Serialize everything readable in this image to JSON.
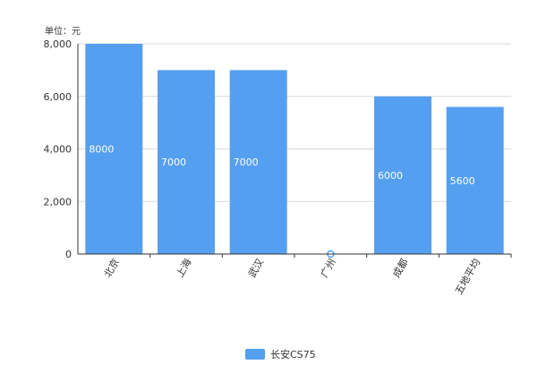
{
  "chart_data": {
    "type": "bar",
    "unit_label": "单位：元",
    "categories": [
      "北京",
      "上海",
      "武汉",
      "广州",
      "成都",
      "五地平均"
    ],
    "series": [
      {
        "name": "长安CS75",
        "values": [
          8000,
          7000,
          7000,
          0,
          6000,
          5600
        ]
      }
    ],
    "data_labels": [
      "8000",
      "7000",
      "7000",
      "",
      "6000",
      "5600"
    ],
    "ylim": [
      0,
      8000
    ],
    "yticks": [
      0,
      2000,
      4000,
      6000,
      8000
    ],
    "ytick_labels": [
      "0",
      "2,000",
      "4,000",
      "6,000",
      "8,000"
    ],
    "grid": true,
    "legend_position": "bottom",
    "bar_color": "#559ff0"
  }
}
